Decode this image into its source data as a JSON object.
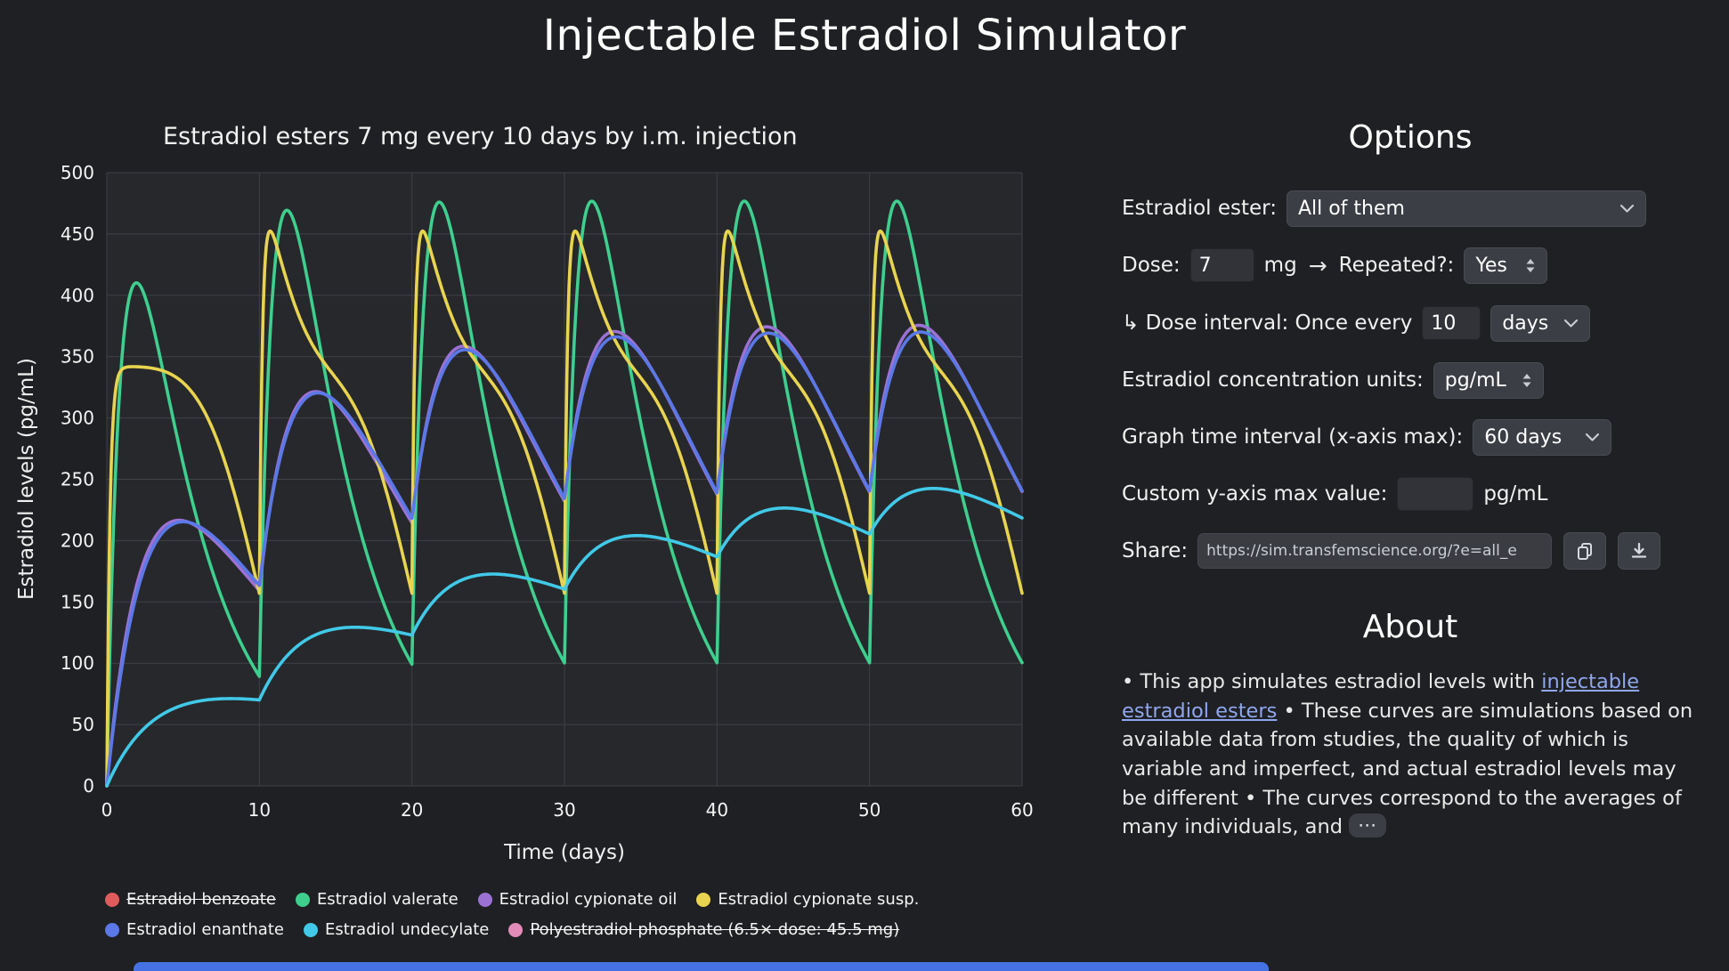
{
  "page": {
    "title": "Injectable Estradiol Simulator"
  },
  "chart_data": {
    "type": "line",
    "title": "Estradiol esters 7 mg every 10 days by i.m. injection",
    "xlabel": "Time (days)",
    "ylabel": "Estradiol levels (pg/mL)",
    "xlim": [
      0,
      60
    ],
    "ylim": [
      0,
      500
    ],
    "x_ticks": [
      0,
      10,
      20,
      30,
      40,
      50,
      60
    ],
    "y_ticks": [
      0,
      50,
      100,
      150,
      200,
      250,
      300,
      350,
      400,
      450,
      500
    ],
    "grid": true,
    "legend_position": "bottom",
    "dose_mg": 7,
    "dose_interval_days": 10,
    "dose_times_days": [
      0,
      10,
      20,
      30,
      40,
      50
    ],
    "route": "i.m. injection",
    "style": {
      "plot_bg": "#27282c",
      "grid_color": "#3f4147",
      "tick_color": "#f5f5f5",
      "line_width": 3.6
    },
    "series": [
      {
        "name": "Estradiol benzoate",
        "color": "#e05c5c",
        "enabled": false,
        "struck_in_legend": true
      },
      {
        "name": "Estradiol valerate",
        "color": "#3ecf8e",
        "enabled": true,
        "model": {
          "type": "biexp",
          "ka": 1.0,
          "ke": 0.22,
          "scale": 806
        },
        "points_read_from_chart": [
          [
            0,
            0
          ],
          [
            2,
            410
          ],
          [
            10,
            90
          ],
          [
            12,
            462
          ],
          [
            20,
            95
          ],
          [
            22,
            466
          ],
          [
            30,
            93
          ],
          [
            32,
            467
          ],
          [
            40,
            94
          ],
          [
            42,
            467
          ],
          [
            50,
            94
          ],
          [
            52,
            467
          ],
          [
            60,
            90
          ]
        ]
      },
      {
        "name": "Estradiol cypionate oil",
        "color": "#9b72d4",
        "enabled": true,
        "model": {
          "type": "biexp",
          "ka": 0.35,
          "ke": 0.115,
          "scale": 556
        },
        "points_read_from_chart": [
          [
            0,
            0
          ],
          [
            4.7,
            216
          ],
          [
            10,
            170
          ],
          [
            14.7,
            310
          ],
          [
            21,
            235
          ],
          [
            24.7,
            342
          ],
          [
            31,
            240
          ],
          [
            34.7,
            357
          ],
          [
            41,
            242
          ],
          [
            44.7,
            360
          ],
          [
            51,
            245
          ],
          [
            54.7,
            361
          ],
          [
            60,
            230
          ]
        ]
      },
      {
        "name": "Estradiol cypionate susp.",
        "color": "#e8d44f",
        "enabled": true,
        "model": {
          "type": "onset_sigmoid_decay",
          "ka": 5.0,
          "tau": 10.6,
          "beta": 4.3,
          "scale": 342
        },
        "points_read_from_chart": [
          [
            0,
            0
          ],
          [
            0.9,
            337
          ],
          [
            10,
            155
          ],
          [
            10.9,
            430
          ],
          [
            20,
            160
          ],
          [
            20.9,
            452
          ],
          [
            30,
            162
          ],
          [
            30.9,
            458
          ],
          [
            40,
            163
          ],
          [
            40.9,
            460
          ],
          [
            50,
            164
          ],
          [
            50.9,
            462
          ],
          [
            60,
            148
          ]
        ]
      },
      {
        "name": "Estradiol enanthate",
        "color": "#5b78e8",
        "enabled": true,
        "model": {
          "type": "biexp",
          "ka": 0.3,
          "ke": 0.125,
          "scale": 690
        },
        "points_read_from_chart": [
          [
            0,
            0
          ],
          [
            5,
            215
          ],
          [
            10,
            185
          ],
          [
            15.2,
            312
          ],
          [
            21.3,
            248
          ],
          [
            25.4,
            342
          ],
          [
            31.5,
            250
          ],
          [
            35.5,
            352
          ],
          [
            41.5,
            250
          ],
          [
            45.5,
            355
          ],
          [
            51.5,
            250
          ],
          [
            55.5,
            355
          ],
          [
            60,
            235
          ]
        ]
      },
      {
        "name": "Estradiol undecylate",
        "color": "#41c9e8",
        "enabled": true,
        "model": {
          "type": "biexp",
          "ka": 0.3,
          "ke": 0.035,
          "scale": 107
        },
        "points_read_from_chart": [
          [
            0,
            0
          ],
          [
            8,
            70
          ],
          [
            10,
            70
          ],
          [
            16,
            131
          ],
          [
            20,
            124
          ],
          [
            26,
            173
          ],
          [
            30,
            164
          ],
          [
            36,
            205
          ],
          [
            40,
            190
          ],
          [
            46,
            230
          ],
          [
            50,
            212
          ],
          [
            55,
            248
          ],
          [
            60,
            222
          ]
        ]
      },
      {
        "name": "Polyestradiol phosphate (6.5× dose: 45.5 mg)",
        "color": "#e08bb8",
        "enabled": false,
        "struck_in_legend": true
      }
    ]
  },
  "options": {
    "heading": "Options",
    "ester_label": "Estradiol ester:",
    "ester_value": "All of them",
    "dose_label": "Dose:",
    "dose_value": "7",
    "dose_unit": "mg",
    "arrow": "→",
    "repeated_label": "Repeated?:",
    "repeated_value": "Yes",
    "interval_label": "↳ Dose interval: Once every",
    "interval_value": "10",
    "interval_unit_value": "days",
    "units_label": "Estradiol concentration units:",
    "units_value": "pg/mL",
    "graph_interval_label": "Graph time interval (x-axis max):",
    "graph_interval_value": "60 days",
    "ymax_label": "Custom y-axis max value:",
    "ymax_value": "",
    "ymax_unit": "pg/mL",
    "share_label": "Share:",
    "share_value": "https://sim.transfemscience.org/?e=all_e"
  },
  "about": {
    "heading": "About",
    "text_before_link": "• This app simulates estradiol levels with ",
    "link_text": "injectable estradiol esters",
    "text_after_link": " • These curves are simulations based on available data from studies, the quality of which is variable and imperfect, and actual estradiol levels may be different • The curves correspond to the averages of many individuals, and ",
    "more_button": "⋯"
  },
  "icons": {
    "chevron_down": "⌄",
    "up_down": "⇕",
    "copy": "⧉",
    "download": "⤓",
    "more": "⋯"
  }
}
